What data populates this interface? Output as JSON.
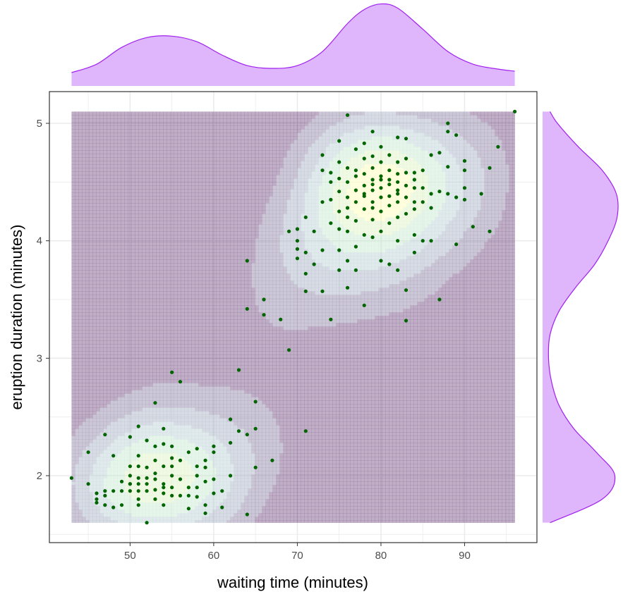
{
  "chart_data": {
    "type": "scatter",
    "xlabel": "waiting time (minutes)",
    "ylabel": "eruption duration (minutes)",
    "xlim": [
      40.35,
      98.65
    ],
    "ylim": [
      1.43,
      5.27
    ],
    "x_ticks": [
      50,
      60,
      70,
      80,
      90
    ],
    "y_ticks": [
      2,
      3,
      4,
      5
    ],
    "x_tick_labels": [
      "50",
      "60",
      "70",
      "80",
      "90"
    ],
    "y_tick_labels": [
      "2",
      "3",
      "4",
      "5"
    ],
    "grid": true,
    "overlays": [
      "2d density contours",
      "marginal density x (top)",
      "marginal density y (right)"
    ],
    "density_modes": [
      {
        "x": 53.5,
        "y": 1.95
      },
      {
        "x": 80.3,
        "y": 4.43
      }
    ],
    "density_region": {
      "x": [
        43,
        96
      ],
      "y": [
        1.6,
        5.1
      ]
    },
    "marginal_x_density": {
      "x": [
        43,
        46,
        49,
        52,
        55,
        58,
        61,
        64,
        67,
        70,
        73,
        76,
        78,
        80,
        82,
        85,
        88,
        91,
        94,
        96
      ],
      "density": [
        0.0,
        0.12,
        0.36,
        0.5,
        0.52,
        0.44,
        0.25,
        0.1,
        0.06,
        0.1,
        0.3,
        0.7,
        0.9,
        0.98,
        0.92,
        0.62,
        0.3,
        0.12,
        0.05,
        0.02
      ]
    },
    "marginal_y_density": {
      "y": [
        1.6,
        1.8,
        2.0,
        2.2,
        2.4,
        2.6,
        2.8,
        3.0,
        3.2,
        3.4,
        3.6,
        3.8,
        4.0,
        4.2,
        4.4,
        4.6,
        4.8,
        5.0,
        5.1
      ],
      "density": [
        0.1,
        0.8,
        0.97,
        0.72,
        0.42,
        0.22,
        0.12,
        0.08,
        0.1,
        0.22,
        0.44,
        0.7,
        0.88,
        1.0,
        0.99,
        0.8,
        0.48,
        0.2,
        0.1
      ]
    },
    "colors": {
      "points": "#006400",
      "density_fill_low": "#6a3d7a",
      "density_fill_high": "#ffffb2",
      "marginal_fill": "#dfb6fb",
      "marginal_line": "#a020f0",
      "grid": "#ebebeb",
      "panel_border": "#333333"
    },
    "points": [
      [
        43,
        1.98
      ],
      [
        45,
        2.2
      ],
      [
        45,
        1.93
      ],
      [
        46,
        1.85
      ],
      [
        46,
        1.8
      ],
      [
        46,
        1.77
      ],
      [
        47,
        2.35
      ],
      [
        47,
        1.87
      ],
      [
        47,
        1.75
      ],
      [
        48,
        2.17
      ],
      [
        48,
        1.87
      ],
      [
        48,
        1.73
      ],
      [
        49,
        1.95
      ],
      [
        49,
        1.87
      ],
      [
        50,
        2.33
      ],
      [
        50,
        2.08
      ],
      [
        50,
        2.0
      ],
      [
        50,
        1.93
      ],
      [
        50,
        1.87
      ],
      [
        51,
        2.42
      ],
      [
        51,
        2.17
      ],
      [
        51,
        2.08
      ],
      [
        51,
        1.98
      ],
      [
        51,
        1.87
      ],
      [
        51,
        1.8
      ],
      [
        51,
        1.75
      ],
      [
        52,
        2.3
      ],
      [
        52,
        2.07
      ],
      [
        52,
        1.93
      ],
      [
        52,
        1.87
      ],
      [
        52,
        1.6
      ],
      [
        53,
        2.25
      ],
      [
        53,
        2.13
      ],
      [
        53,
        2.02
      ],
      [
        53,
        1.97
      ],
      [
        53,
        1.88
      ],
      [
        53,
        2.62
      ],
      [
        54,
        2.4
      ],
      [
        54,
        2.27
      ],
      [
        54,
        2.08
      ],
      [
        54,
        1.93
      ],
      [
        54,
        1.85
      ],
      [
        54,
        1.75
      ],
      [
        55,
        2.88
      ],
      [
        55,
        2.25
      ],
      [
        55,
        2.15
      ],
      [
        55,
        2.0
      ],
      [
        55,
        1.9
      ],
      [
        56,
        2.8
      ],
      [
        56,
        2.13
      ],
      [
        56,
        1.97
      ],
      [
        57,
        2.2
      ],
      [
        57,
        1.83
      ],
      [
        57,
        1.72
      ],
      [
        58,
        2.23
      ],
      [
        58,
        2.0
      ],
      [
        58,
        1.9
      ],
      [
        58,
        1.82
      ],
      [
        59,
        2.13
      ],
      [
        59,
        2.07
      ],
      [
        59,
        1.95
      ],
      [
        59,
        1.75
      ],
      [
        59,
        1.68
      ],
      [
        60,
        2.25
      ],
      [
        60,
        2.2
      ],
      [
        60,
        1.97
      ],
      [
        61,
        1.87
      ],
      [
        61,
        1.73
      ],
      [
        62,
        2.48
      ],
      [
        62,
        2.28
      ],
      [
        62,
        2.0
      ],
      [
        63,
        2.9
      ],
      [
        63,
        2.38
      ],
      [
        64,
        3.83
      ],
      [
        64,
        3.42
      ],
      [
        64,
        2.35
      ],
      [
        64,
        1.67
      ],
      [
        65,
        2.63
      ],
      [
        65,
        2.4
      ],
      [
        65,
        2.07
      ],
      [
        66,
        3.5
      ],
      [
        66,
        3.37
      ],
      [
        67,
        2.13
      ],
      [
        68,
        3.33
      ],
      [
        69,
        4.08
      ],
      [
        69,
        3.07
      ],
      [
        70,
        4.1
      ],
      [
        70,
        4.0
      ],
      [
        70,
        3.93
      ],
      [
        70,
        3.85
      ],
      [
        71,
        4.2
      ],
      [
        71,
        3.9
      ],
      [
        71,
        3.72
      ],
      [
        71,
        3.57
      ],
      [
        71,
        2.38
      ],
      [
        72,
        4.08
      ],
      [
        72,
        3.8
      ],
      [
        73,
        4.73
      ],
      [
        73,
        4.6
      ],
      [
        73,
        4.33
      ],
      [
        73,
        3.92
      ],
      [
        73,
        3.57
      ],
      [
        74,
        4.58
      ],
      [
        74,
        4.5
      ],
      [
        74,
        4.35
      ],
      [
        74,
        4.15
      ],
      [
        74,
        3.33
      ],
      [
        75,
        4.85
      ],
      [
        75,
        4.67
      ],
      [
        75,
        4.53
      ],
      [
        75,
        4.42
      ],
      [
        75,
        4.25
      ],
      [
        75,
        4.1
      ],
      [
        75,
        3.92
      ],
      [
        75,
        3.75
      ],
      [
        76,
        5.07
      ],
      [
        76,
        4.62
      ],
      [
        76,
        4.5
      ],
      [
        76,
        4.37
      ],
      [
        76,
        4.2
      ],
      [
        76,
        4.08
      ],
      [
        76,
        3.83
      ],
      [
        76,
        3.6
      ],
      [
        77,
        4.78
      ],
      [
        77,
        4.55
      ],
      [
        77,
        4.43
      ],
      [
        77,
        4.33
      ],
      [
        77,
        4.17
      ],
      [
        77,
        3.95
      ],
      [
        77,
        3.75
      ],
      [
        78,
        4.83
      ],
      [
        78,
        4.7
      ],
      [
        78,
        4.57
      ],
      [
        78,
        4.47
      ],
      [
        78,
        4.38
      ],
      [
        78,
        4.27
      ],
      [
        78,
        4.05
      ],
      [
        78,
        3.45
      ],
      [
        79,
        4.93
      ],
      [
        79,
        4.72
      ],
      [
        79,
        4.62
      ],
      [
        79,
        4.52
      ],
      [
        79,
        4.43
      ],
      [
        79,
        4.33
      ],
      [
        79,
        4.18
      ],
      [
        79,
        4.03
      ],
      [
        80,
        4.8
      ],
      [
        80,
        4.67
      ],
      [
        80,
        4.55
      ],
      [
        80,
        4.45
      ],
      [
        80,
        4.37
      ],
      [
        80,
        4.25
      ],
      [
        80,
        4.08
      ],
      [
        80,
        3.83
      ],
      [
        81,
        4.73
      ],
      [
        81,
        4.6
      ],
      [
        81,
        4.48
      ],
      [
        81,
        4.38
      ],
      [
        81,
        4.3
      ],
      [
        81,
        4.15
      ],
      [
        81,
        3.8
      ],
      [
        82,
        4.88
      ],
      [
        82,
        4.67
      ],
      [
        82,
        4.57
      ],
      [
        82,
        4.5
      ],
      [
        82,
        4.43
      ],
      [
        82,
        4.33
      ],
      [
        82,
        4.2
      ],
      [
        82,
        4.0
      ],
      [
        82,
        3.75
      ],
      [
        83,
        4.87
      ],
      [
        83,
        4.7
      ],
      [
        83,
        4.58
      ],
      [
        83,
        4.47
      ],
      [
        83,
        4.37
      ],
      [
        83,
        4.23
      ],
      [
        83,
        3.58
      ],
      [
        83,
        3.32
      ],
      [
        84,
        4.58
      ],
      [
        84,
        4.52
      ],
      [
        84,
        4.45
      ],
      [
        84,
        4.27
      ],
      [
        84,
        4.05
      ],
      [
        84,
        3.9
      ],
      [
        85,
        4.6
      ],
      [
        85,
        4.45
      ],
      [
        85,
        4.33
      ],
      [
        85,
        4.0
      ],
      [
        86,
        4.73
      ],
      [
        86,
        4.28
      ],
      [
        86,
        4.0
      ],
      [
        87,
        4.75
      ],
      [
        87,
        4.42
      ],
      [
        87,
        3.5
      ],
      [
        88,
        5.0
      ],
      [
        88,
        4.93
      ],
      [
        88,
        4.63
      ],
      [
        88,
        4.4
      ],
      [
        89,
        4.9
      ],
      [
        89,
        4.37
      ],
      [
        89,
        3.97
      ],
      [
        90,
        4.68
      ],
      [
        90,
        4.6
      ],
      [
        90,
        4.45
      ],
      [
        90,
        4.35
      ],
      [
        91,
        4.12
      ],
      [
        92,
        4.4
      ],
      [
        93,
        4.62
      ],
      [
        93,
        4.08
      ],
      [
        94,
        4.8
      ],
      [
        96,
        5.1
      ],
      [
        86,
        4.4
      ],
      [
        77,
        4.6
      ],
      [
        79,
        4.48
      ],
      [
        81,
        4.52
      ],
      [
        80,
        4.52
      ],
      [
        78,
        4.4
      ],
      [
        82,
        4.4
      ],
      [
        79,
        4.28
      ],
      [
        84,
        4.33
      ],
      [
        76,
        4.28
      ],
      [
        50,
        1.93
      ],
      [
        52,
        1.98
      ],
      [
        54,
        1.9
      ],
      [
        56,
        1.83
      ],
      [
        53,
        1.8
      ],
      [
        57,
        1.9
      ],
      [
        55,
        1.83
      ],
      [
        49,
        1.75
      ],
      [
        58,
        2.08
      ],
      [
        60,
        1.85
      ],
      [
        47,
        1.83
      ],
      [
        51,
        1.93
      ],
      [
        55,
        2.08
      ]
    ]
  }
}
